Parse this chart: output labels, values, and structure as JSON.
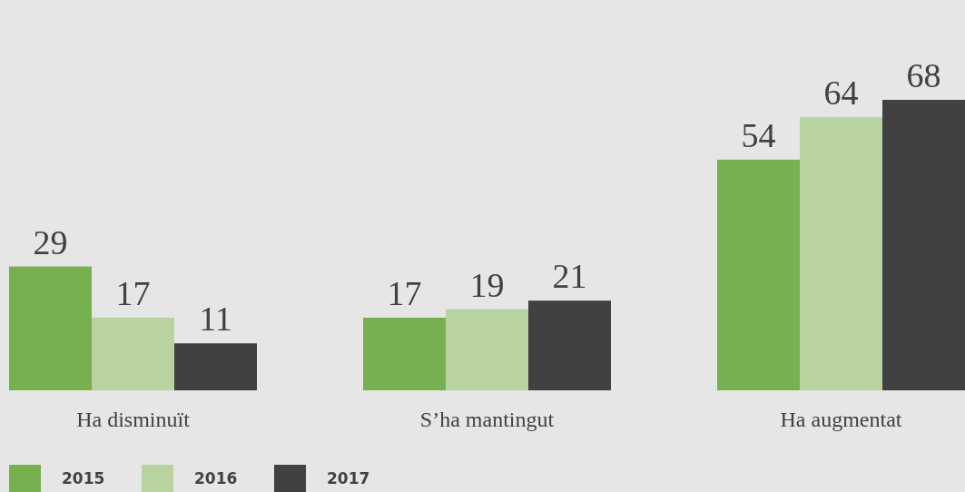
{
  "chart_data": {
    "type": "bar",
    "categories": [
      "Ha disminuït",
      "S’ha mantingut",
      "Ha augmentat"
    ],
    "series": [
      {
        "name": "2015",
        "color": "#76b04f",
        "values": [
          29,
          17,
          54
        ]
      },
      {
        "name": "2016",
        "color": "#b9d3a0",
        "values": [
          17,
          19,
          64
        ]
      },
      {
        "name": "2017",
        "color": "#414042",
        "values": [
          11,
          21,
          68
        ]
      }
    ],
    "data_labels": true,
    "legend": "bottom left"
  }
}
